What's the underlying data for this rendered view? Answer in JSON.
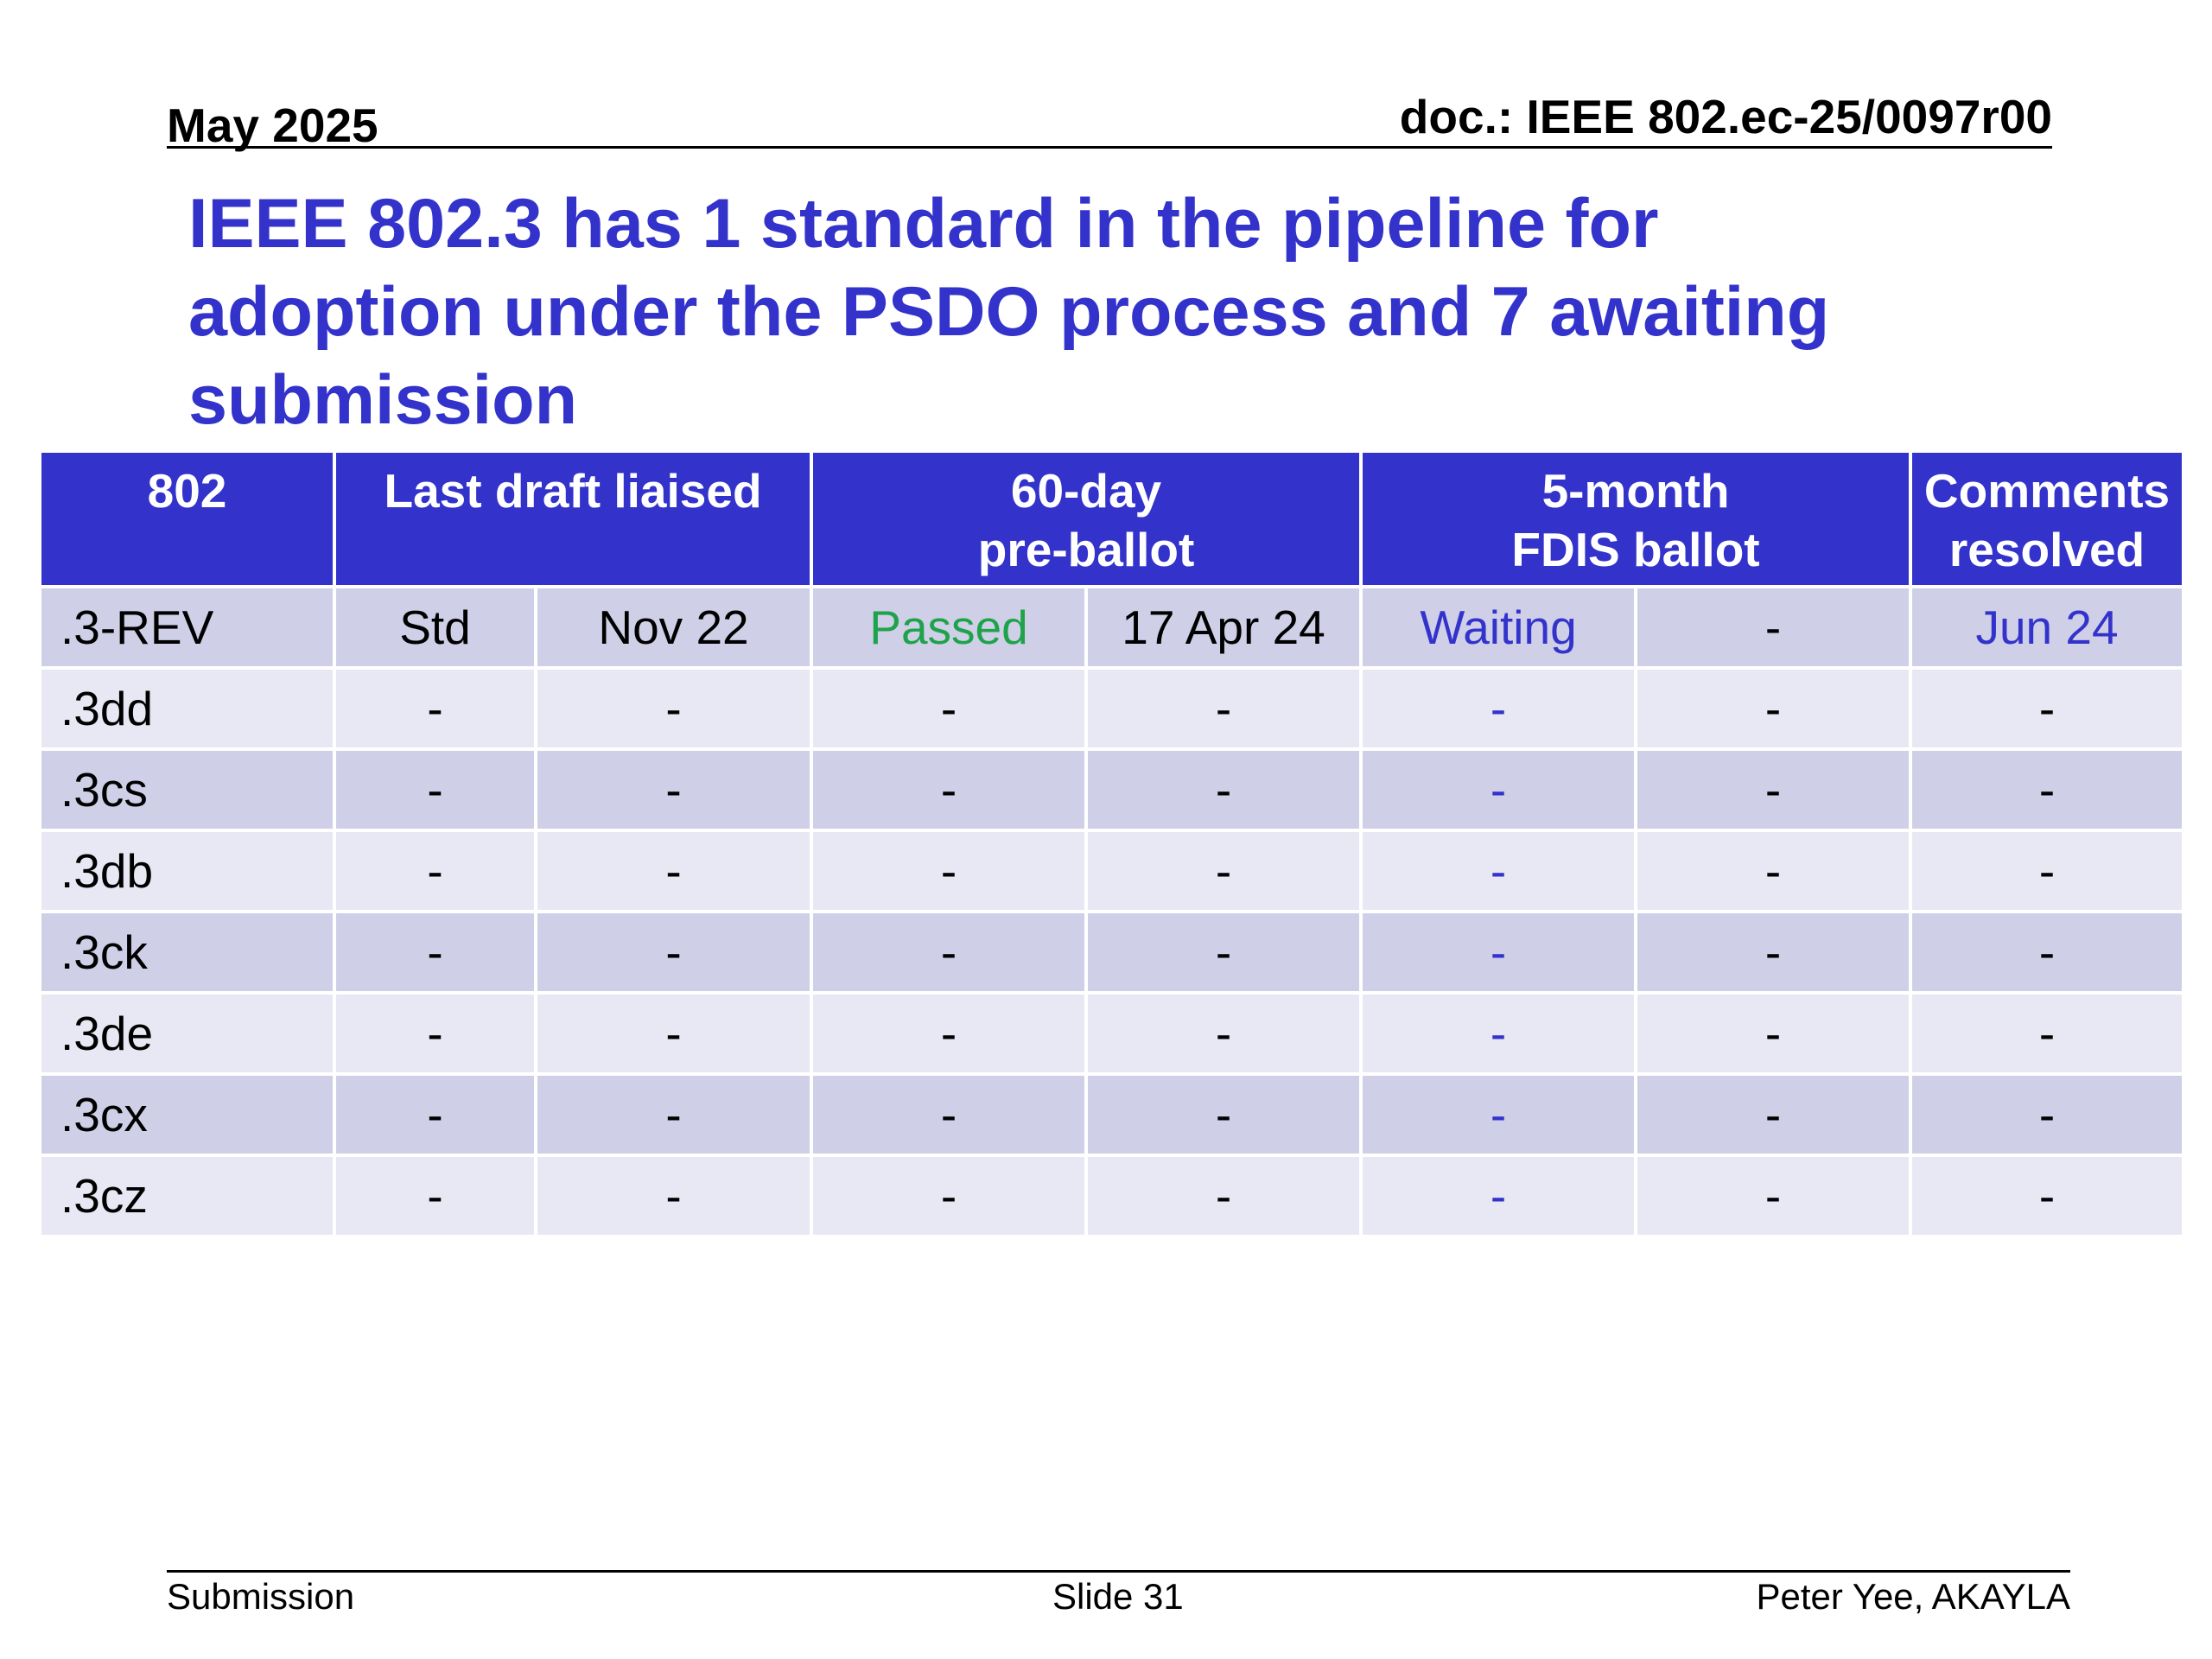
{
  "header": {
    "date": "May 2025",
    "doc": "doc.: IEEE 802.ec-25/0097r00"
  },
  "title": {
    "line1": "IEEE 802.3 has 1 standard in the pipeline for",
    "line2": "adoption under the PSDO process and 7 awaiting",
    "line3": "submission"
  },
  "table": {
    "headers": {
      "col1": "802",
      "col2": "Last draft liaised",
      "col3_line1": "60-day",
      "col3_line2": "pre-ballot",
      "col4_line1": "5-month",
      "col4_line2": "FDIS ballot",
      "col5_line1": "Comments",
      "col5_line2": "resolved"
    },
    "rows": [
      {
        "std": ".3-REV",
        "c1": "Std",
        "c2": "Nov 22",
        "c3": "Passed",
        "c4": "17 Apr 24",
        "c5": "Waiting",
        "c6": "-",
        "c7": "Jun 24"
      },
      {
        "std": ".3dd",
        "c1": "-",
        "c2": "-",
        "c3": "-",
        "c4": "-",
        "c5": "-",
        "c6": "-",
        "c7": "-"
      },
      {
        "std": ".3cs",
        "c1": "-",
        "c2": "-",
        "c3": "-",
        "c4": "-",
        "c5": "-",
        "c6": "-",
        "c7": "-"
      },
      {
        "std": ".3db",
        "c1": "-",
        "c2": "-",
        "c3": "-",
        "c4": "-",
        "c5": "-",
        "c6": "-",
        "c7": "-"
      },
      {
        "std": ".3ck",
        "c1": "-",
        "c2": "-",
        "c3": "-",
        "c4": "-",
        "c5": "-",
        "c6": "-",
        "c7": "-"
      },
      {
        "std": ".3de",
        "c1": "-",
        "c2": "-",
        "c3": "-",
        "c4": "-",
        "c5": "-",
        "c6": "-",
        "c7": "-"
      },
      {
        "std": ".3cx",
        "c1": "-",
        "c2": "-",
        "c3": "-",
        "c4": "-",
        "c5": "-",
        "c6": "-",
        "c7": "-"
      },
      {
        "std": ".3cz",
        "c1": "-",
        "c2": "-",
        "c3": "-",
        "c4": "-",
        "c5": "-",
        "c6": "-",
        "c7": "-"
      }
    ]
  },
  "footer": {
    "left": "Submission",
    "center": "Slide 31",
    "right": "Peter Yee, AKAYLA"
  },
  "colors": {
    "title": "#3333cc",
    "header_fill": "#3333cc",
    "row_dark": "#cfcfe8",
    "row_light": "#e8e8f4",
    "passed": "#1fa34a",
    "status_blue": "#3333cc"
  }
}
